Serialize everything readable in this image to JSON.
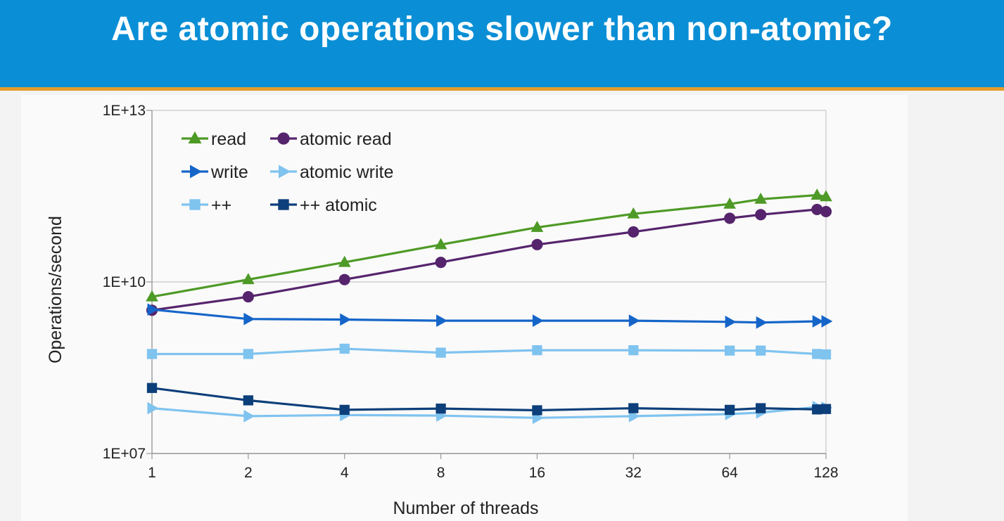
{
  "slide": {
    "title": "Are atomic operations slower than non-atomic?"
  },
  "chart_data": {
    "type": "line",
    "title": "",
    "xlabel": "Number of threads",
    "ylabel": "Operations/second",
    "xscale": "log2",
    "yscale": "log10",
    "xlim": [
      1,
      128
    ],
    "ylim": [
      10000000.0,
      10000000000000.0
    ],
    "x_ticks": [
      1,
      2,
      4,
      8,
      16,
      32,
      64,
      128
    ],
    "x_tick_labels": [
      "1",
      "2",
      "4",
      "8",
      "16",
      "32",
      "64",
      "128"
    ],
    "y_ticks": [
      10000000.0,
      10000000000.0,
      10000000000000.0
    ],
    "y_tick_labels": [
      "1E+07",
      "1E+10",
      "1E+13"
    ],
    "grid": true,
    "legend": {
      "position": "top-left",
      "columns": 2
    },
    "series": [
      {
        "name": "read",
        "color": "#4e9a26",
        "marker": "triangle-up",
        "x": [
          1,
          2,
          4,
          8,
          16,
          32,
          64,
          80,
          120,
          128
        ],
        "y": [
          5500000000.0,
          11000000000.0,
          22000000000.0,
          45000000000.0,
          90000000000.0,
          155000000000.0,
          230000000000.0,
          280000000000.0,
          330000000000.0,
          310000000000.0
        ]
      },
      {
        "name": "atomic read",
        "color": "#56246d",
        "marker": "circle",
        "x": [
          1,
          2,
          4,
          8,
          16,
          32,
          64,
          80,
          120,
          128
        ],
        "y": [
          3200000000.0,
          5500000000.0,
          11000000000.0,
          22000000000.0,
          45000000000.0,
          75000000000.0,
          130000000000.0,
          150000000000.0,
          185000000000.0,
          170000000000.0
        ]
      },
      {
        "name": "write",
        "color": "#1565c9",
        "marker": "triangle-right",
        "x": [
          1,
          2,
          4,
          8,
          16,
          32,
          64,
          80,
          120,
          128
        ],
        "y": [
          3300000000.0,
          2250000000.0,
          2200000000.0,
          2100000000.0,
          2100000000.0,
          2100000000.0,
          2000000000.0,
          1950000000.0,
          2050000000.0,
          2050000000.0
        ]
      },
      {
        "name": "atomic write",
        "color": "#7fc3ef",
        "marker": "triangle-right",
        "x": [
          1,
          2,
          4,
          8,
          16,
          32,
          64,
          80,
          120,
          128
        ],
        "y": [
          62000000.0,
          45000000.0,
          47000000.0,
          46000000.0,
          42000000.0,
          45000000.0,
          49000000.0,
          52000000.0,
          65000000.0,
          63000000.0
        ]
      },
      {
        "name": "++",
        "color": "#7fc3ef",
        "marker": "square",
        "x": [
          1,
          2,
          4,
          8,
          16,
          32,
          64,
          80,
          120,
          128
        ],
        "y": [
          550000000.0,
          550000000.0,
          680000000.0,
          580000000.0,
          640000000.0,
          640000000.0,
          630000000.0,
          630000000.0,
          550000000.0,
          540000000.0
        ]
      },
      {
        "name": "++ atomic",
        "color": "#0d3f7a",
        "marker": "square",
        "x": [
          1,
          2,
          4,
          8,
          16,
          32,
          64,
          80,
          120,
          128
        ],
        "y": [
          140000000.0,
          85000000.0,
          58000000.0,
          61000000.0,
          57000000.0,
          62000000.0,
          58000000.0,
          62000000.0,
          59000000.0,
          60000000.0
        ]
      }
    ]
  }
}
